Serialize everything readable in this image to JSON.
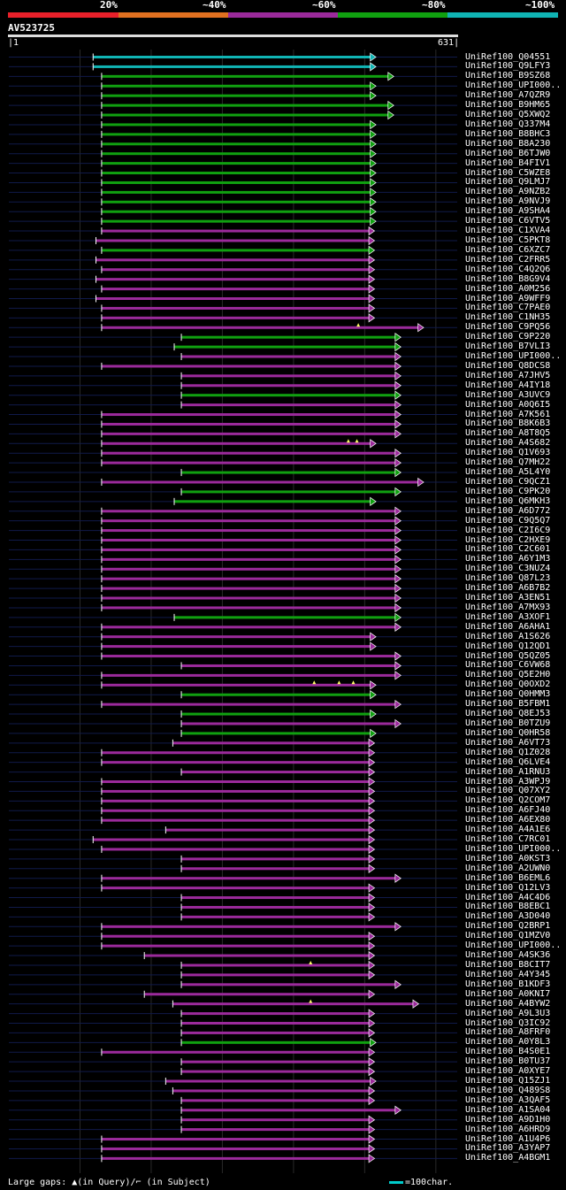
{
  "legend": {
    "labels": [
      "20%",
      "~40%",
      "~60%",
      "~80%",
      "~100%"
    ],
    "colors": [
      "#e8202a",
      "#e07020",
      "#9b2a9b",
      "#10a010",
      "#10b4b4"
    ]
  },
  "query": {
    "id": "AV523725",
    "start": "1",
    "end": "631"
  },
  "footer": {
    "gaps_text": "Large gaps: ▲(in Query)/⌐ (in Subject)",
    "scale_text": "=100char."
  },
  "chart_data": {
    "type": "alignment",
    "title": "AV523725",
    "query_length": 631,
    "x_axis": {
      "min": 1,
      "max": 631
    },
    "identity_bins": [
      "20%",
      "~40%",
      "~60%",
      "~80%",
      "~100%"
    ],
    "hits": [
      {
        "id": "UniRef100_Q04551",
        "start": 120,
        "end": 515,
        "cls": "~100%"
      },
      {
        "id": "UniRef100_Q9LFY3",
        "start": 120,
        "end": 515,
        "cls": "~100%"
      },
      {
        "id": "UniRef100_B9SZ68",
        "start": 132,
        "end": 540,
        "cls": "~80%"
      },
      {
        "id": "UniRef100_UPI000..",
        "start": 132,
        "end": 515,
        "cls": "~80%"
      },
      {
        "id": "UniRef100_A7QZR9",
        "start": 132,
        "end": 515,
        "cls": "~80%"
      },
      {
        "id": "UniRef100_B9HM65",
        "start": 132,
        "end": 540,
        "cls": "~80%"
      },
      {
        "id": "UniRef100_Q5XWQ2",
        "start": 132,
        "end": 540,
        "cls": "~80%"
      },
      {
        "id": "UniRef100_Q337M4",
        "start": 132,
        "end": 515,
        "cls": "~80%"
      },
      {
        "id": "UniRef100_B8BHC3",
        "start": 132,
        "end": 515,
        "cls": "~80%"
      },
      {
        "id": "UniRef100_B8A230",
        "start": 132,
        "end": 515,
        "cls": "~80%"
      },
      {
        "id": "UniRef100_B6TJW0",
        "start": 132,
        "end": 515,
        "cls": "~80%"
      },
      {
        "id": "UniRef100_B4FIV1",
        "start": 132,
        "end": 515,
        "cls": "~80%"
      },
      {
        "id": "UniRef100_C5WZE8",
        "start": 132,
        "end": 515,
        "cls": "~80%"
      },
      {
        "id": "UniRef100_Q9LMJ7",
        "start": 132,
        "end": 515,
        "cls": "~80%"
      },
      {
        "id": "UniRef100_A9NZB2",
        "start": 132,
        "end": 515,
        "cls": "~80%"
      },
      {
        "id": "UniRef100_A9NVJ9",
        "start": 132,
        "end": 515,
        "cls": "~80%"
      },
      {
        "id": "UniRef100_A9SHA4",
        "start": 132,
        "end": 515,
        "cls": "~80%"
      },
      {
        "id": "UniRef100_C6VTV5",
        "start": 132,
        "end": 515,
        "cls": "~80%"
      },
      {
        "id": "UniRef100_C1XVA4",
        "start": 132,
        "end": 513,
        "cls": "~60%"
      },
      {
        "id": "UniRef100_C5PKT8",
        "start": 124,
        "end": 513,
        "cls": "~60%"
      },
      {
        "id": "UniRef100_C6XZC7",
        "start": 132,
        "end": 513,
        "cls": "~80%"
      },
      {
        "id": "UniRef100_C2FRR5",
        "start": 124,
        "end": 513,
        "cls": "~60%"
      },
      {
        "id": "UniRef100_C4Q2Q6",
        "start": 132,
        "end": 513,
        "cls": "~60%"
      },
      {
        "id": "UniRef100_B8G9V4",
        "start": 124,
        "end": 513,
        "cls": "~60%"
      },
      {
        "id": "UniRef100_A0M256",
        "start": 132,
        "end": 513,
        "cls": "~60%"
      },
      {
        "id": "UniRef100_A9WFF9",
        "start": 124,
        "end": 513,
        "cls": "~60%"
      },
      {
        "id": "UniRef100_C7PAE0",
        "start": 132,
        "end": 513,
        "cls": "~60%"
      },
      {
        "id": "UniRef100_C1NH35",
        "start": 132,
        "end": 513,
        "cls": "~60%"
      },
      {
        "id": "UniRef100_C9PQ56",
        "start": 132,
        "end": 582,
        "cls": "~60%",
        "gaps": [
          492
        ]
      },
      {
        "id": "UniRef100_C9P220",
        "start": 244,
        "end": 550,
        "cls": "~80%"
      },
      {
        "id": "UniRef100_B7VLI3",
        "start": 234,
        "end": 550,
        "cls": "~80%"
      },
      {
        "id": "UniRef100_UPI000..",
        "start": 244,
        "end": 550,
        "cls": "~60%"
      },
      {
        "id": "UniRef100_Q8DCS8",
        "start": 132,
        "end": 550,
        "cls": "~60%"
      },
      {
        "id": "UniRef100_A7JHV5",
        "start": 244,
        "end": 550,
        "cls": "~60%"
      },
      {
        "id": "UniRef100_A4IY18",
        "start": 244,
        "end": 550,
        "cls": "~60%"
      },
      {
        "id": "UniRef100_A3UVC9",
        "start": 244,
        "end": 550,
        "cls": "~80%"
      },
      {
        "id": "UniRef100_A0Q6I5",
        "start": 244,
        "end": 550,
        "cls": "~60%"
      },
      {
        "id": "UniRef100_A7K561",
        "start": 132,
        "end": 550,
        "cls": "~60%"
      },
      {
        "id": "UniRef100_B8K6B3",
        "start": 132,
        "end": 550,
        "cls": "~60%"
      },
      {
        "id": "UniRef100_A8T8Q5",
        "start": 132,
        "end": 550,
        "cls": "~60%"
      },
      {
        "id": "UniRef100_A4S682",
        "start": 132,
        "end": 515,
        "cls": "~60%",
        "gaps": [
          478,
          490
        ]
      },
      {
        "id": "UniRef100_Q1V693",
        "start": 132,
        "end": 550,
        "cls": "~60%"
      },
      {
        "id": "UniRef100_Q7MH22",
        "start": 132,
        "end": 550,
        "cls": "~60%"
      },
      {
        "id": "UniRef100_A5L4Y0",
        "start": 244,
        "end": 550,
        "cls": "~80%"
      },
      {
        "id": "UniRef100_C9QCZ1",
        "start": 132,
        "end": 582,
        "cls": "~60%"
      },
      {
        "id": "UniRef100_C9PK20",
        "start": 244,
        "end": 550,
        "cls": "~80%"
      },
      {
        "id": "UniRef100_Q6MKH3",
        "start": 234,
        "end": 515,
        "cls": "~80%"
      },
      {
        "id": "UniRef100_A6D772",
        "start": 132,
        "end": 550,
        "cls": "~60%"
      },
      {
        "id": "UniRef100_C9Q5Q7",
        "start": 132,
        "end": 550,
        "cls": "~60%"
      },
      {
        "id": "UniRef100_C2I6C9",
        "start": 132,
        "end": 550,
        "cls": "~60%"
      },
      {
        "id": "UniRef100_C2HXE9",
        "start": 132,
        "end": 550,
        "cls": "~60%"
      },
      {
        "id": "UniRef100_C2C601",
        "start": 132,
        "end": 550,
        "cls": "~60%"
      },
      {
        "id": "UniRef100_A6Y1M3",
        "start": 132,
        "end": 550,
        "cls": "~60%"
      },
      {
        "id": "UniRef100_C3NUZ4",
        "start": 132,
        "end": 550,
        "cls": "~60%"
      },
      {
        "id": "UniRef100_Q87L23",
        "start": 132,
        "end": 550,
        "cls": "~60%"
      },
      {
        "id": "UniRef100_A6B7B2",
        "start": 132,
        "end": 550,
        "cls": "~60%"
      },
      {
        "id": "UniRef100_A3EN51",
        "start": 132,
        "end": 550,
        "cls": "~60%"
      },
      {
        "id": "UniRef100_A7MX93",
        "start": 132,
        "end": 550,
        "cls": "~60%"
      },
      {
        "id": "UniRef100_A3XOF1",
        "start": 234,
        "end": 550,
        "cls": "~80%"
      },
      {
        "id": "UniRef100_A6AHA1",
        "start": 132,
        "end": 550,
        "cls": "~60%"
      },
      {
        "id": "UniRef100_A1S626",
        "start": 132,
        "end": 515,
        "cls": "~60%"
      },
      {
        "id": "UniRef100_Q12QD1",
        "start": 132,
        "end": 515,
        "cls": "~60%"
      },
      {
        "id": "UniRef100_Q5QZ05",
        "start": 132,
        "end": 550,
        "cls": "~60%"
      },
      {
        "id": "UniRef100_C6VW68",
        "start": 244,
        "end": 550,
        "cls": "~60%"
      },
      {
        "id": "UniRef100_Q5E2H0",
        "start": 132,
        "end": 550,
        "cls": "~60%"
      },
      {
        "id": "UniRef100_Q0OXD2",
        "start": 132,
        "end": 515,
        "cls": "~60%",
        "gaps": [
          430,
          465,
          485
        ]
      },
      {
        "id": "UniRef100_Q0HMM3",
        "start": 244,
        "end": 515,
        "cls": "~80%"
      },
      {
        "id": "UniRef100_B5FBM1",
        "start": 132,
        "end": 550,
        "cls": "~60%"
      },
      {
        "id": "UniRef100_Q8EJ53",
        "start": 244,
        "end": 515,
        "cls": "~80%"
      },
      {
        "id": "UniRef100_B0TZU9",
        "start": 244,
        "end": 550,
        "cls": "~60%"
      },
      {
        "id": "UniRef100_Q0HR58",
        "start": 244,
        "end": 515,
        "cls": "~80%"
      },
      {
        "id": "UniRef100_A6VT73",
        "start": 232,
        "end": 513,
        "cls": "~60%"
      },
      {
        "id": "UniRef100_Q1Z028",
        "start": 132,
        "end": 513,
        "cls": "~60%"
      },
      {
        "id": "UniRef100_Q6LVE4",
        "start": 132,
        "end": 513,
        "cls": "~60%"
      },
      {
        "id": "UniRef100_A1RNU3",
        "start": 244,
        "end": 513,
        "cls": "~60%"
      },
      {
        "id": "UniRef100_A3WPJ9",
        "start": 132,
        "end": 513,
        "cls": "~60%"
      },
      {
        "id": "UniRef100_Q07XY2",
        "start": 132,
        "end": 513,
        "cls": "~60%"
      },
      {
        "id": "UniRef100_Q2COM7",
        "start": 132,
        "end": 513,
        "cls": "~60%"
      },
      {
        "id": "UniRef100_A6FJ40",
        "start": 132,
        "end": 513,
        "cls": "~60%"
      },
      {
        "id": "UniRef100_A6EX80",
        "start": 132,
        "end": 513,
        "cls": "~60%"
      },
      {
        "id": "UniRef100_A4A1E6",
        "start": 222,
        "end": 513,
        "cls": "~60%"
      },
      {
        "id": "UniRef100_C7RC01",
        "start": 120,
        "end": 513,
        "cls": "~60%"
      },
      {
        "id": "UniRef100_UPI000..",
        "start": 132,
        "end": 513,
        "cls": "~60%"
      },
      {
        "id": "UniRef100_A0KST3",
        "start": 244,
        "end": 513,
        "cls": "~60%"
      },
      {
        "id": "UniRef100_A2UWN0",
        "start": 244,
        "end": 513,
        "cls": "~60%"
      },
      {
        "id": "UniRef100_B6EML6",
        "start": 132,
        "end": 550,
        "cls": "~60%"
      },
      {
        "id": "UniRef100_Q12LV3",
        "start": 132,
        "end": 513,
        "cls": "~60%"
      },
      {
        "id": "UniRef100_A4C4D6",
        "start": 244,
        "end": 513,
        "cls": "~60%"
      },
      {
        "id": "UniRef100_B8EBC1",
        "start": 244,
        "end": 513,
        "cls": "~60%"
      },
      {
        "id": "UniRef100_A3D040",
        "start": 244,
        "end": 513,
        "cls": "~60%"
      },
      {
        "id": "UniRef100_Q2BRP1",
        "start": 132,
        "end": 550,
        "cls": "~60%"
      },
      {
        "id": "UniRef100_Q1MZV0",
        "start": 132,
        "end": 513,
        "cls": "~60%"
      },
      {
        "id": "UniRef100_UPI000..",
        "start": 132,
        "end": 513,
        "cls": "~60%"
      },
      {
        "id": "UniRef100_A4SK36",
        "start": 192,
        "end": 513,
        "cls": "~60%"
      },
      {
        "id": "UniRef100_B8CIT7",
        "start": 244,
        "end": 513,
        "cls": "~60%",
        "gaps": [
          425
        ]
      },
      {
        "id": "UniRef100_A4Y345",
        "start": 244,
        "end": 513,
        "cls": "~60%"
      },
      {
        "id": "UniRef100_B1KDF3",
        "start": 244,
        "end": 550,
        "cls": "~60%"
      },
      {
        "id": "UniRef100_A0KNI7",
        "start": 192,
        "end": 513,
        "cls": "~60%"
      },
      {
        "id": "UniRef100_A4BYW2",
        "start": 232,
        "end": 575,
        "cls": "~60%",
        "gaps": [
          425
        ]
      },
      {
        "id": "UniRef100_A9L3U3",
        "start": 244,
        "end": 513,
        "cls": "~60%"
      },
      {
        "id": "UniRef100_Q3IC92",
        "start": 244,
        "end": 513,
        "cls": "~60%"
      },
      {
        "id": "UniRef100_A8FRF0",
        "start": 244,
        "end": 513,
        "cls": "~60%"
      },
      {
        "id": "UniRef100_A0Y8L3",
        "start": 244,
        "end": 515,
        "cls": "~80%"
      },
      {
        "id": "UniRef100_B4S0E1",
        "start": 132,
        "end": 513,
        "cls": "~60%"
      },
      {
        "id": "UniRef100_B0TU37",
        "start": 244,
        "end": 513,
        "cls": "~60%"
      },
      {
        "id": "UniRef100_A0XYE7",
        "start": 244,
        "end": 513,
        "cls": "~60%"
      },
      {
        "id": "UniRef100_Q15ZJ1",
        "start": 222,
        "end": 515,
        "cls": "~60%"
      },
      {
        "id": "UniRef100_Q489S8",
        "start": 232,
        "end": 513,
        "cls": "~60%"
      },
      {
        "id": "UniRef100_A3QAF5",
        "start": 244,
        "end": 513,
        "cls": "~60%"
      },
      {
        "id": "UniRef100_A1SA04",
        "start": 244,
        "end": 550,
        "cls": "~60%"
      },
      {
        "id": "UniRef100_A9D1H0",
        "start": 244,
        "end": 513,
        "cls": "~60%"
      },
      {
        "id": "UniRef100_A6HRD9",
        "start": 244,
        "end": 513,
        "cls": "~60%"
      },
      {
        "id": "UniRef100_A1U4P6",
        "start": 132,
        "end": 513,
        "cls": "~60%"
      },
      {
        "id": "UniRef100_A3YAP7",
        "start": 132,
        "end": 513,
        "cls": "~60%"
      },
      {
        "id": "UniRef100_A4BGM1",
        "start": 132,
        "end": 513,
        "cls": "~60%"
      }
    ]
  }
}
